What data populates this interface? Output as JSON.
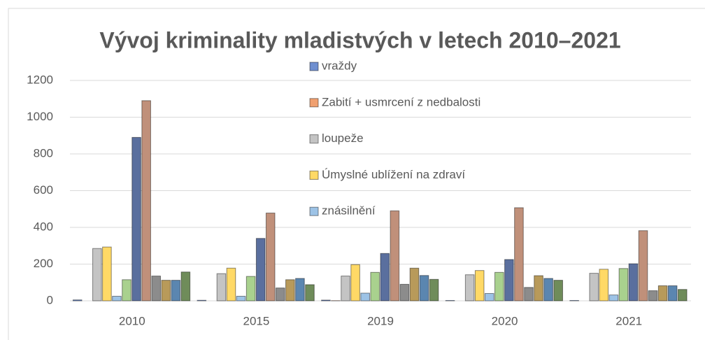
{
  "chart_data": {
    "type": "bar",
    "title": "Vývoj kriminality mladistvých v letech 2010–2021",
    "categories": [
      "2010",
      "2015",
      "2019",
      "2020",
      "2021"
    ],
    "series": [
      {
        "name": "vraždy",
        "color": "#6f8fd0",
        "values": [
          5,
          3,
          4,
          2,
          2
        ]
      },
      {
        "name": "Zabití + usmrcení z nedbalosti",
        "color": "#f0a070",
        "values": [
          0,
          0,
          1,
          0,
          0
        ]
      },
      {
        "name": "loupeže",
        "color": "#c4c4c4",
        "values": [
          285,
          148,
          135,
          142,
          150
        ]
      },
      {
        "name": "Úmyslné ublížení na zdraví",
        "color": "#ffd966",
        "values": [
          293,
          178,
          197,
          165,
          172
        ]
      },
      {
        "name": "znásilnění",
        "color": "#9dc3e6",
        "values": [
          25,
          25,
          42,
          40,
          32
        ]
      },
      {
        "color": "#a9d18e",
        "values": [
          115,
          133,
          155,
          155,
          176
        ]
      },
      {
        "color": "#5a6f9e",
        "values": [
          890,
          340,
          258,
          225,
          202
        ]
      },
      {
        "color": "#c0907a",
        "values": [
          1090,
          478,
          490,
          507,
          382
        ]
      },
      {
        "color": "#8c8c8c",
        "values": [
          135,
          70,
          90,
          73,
          55
        ]
      },
      {
        "color": "#b89a5a",
        "values": [
          112,
          115,
          178,
          137,
          82
        ]
      },
      {
        "color": "#5b86b0",
        "values": [
          112,
          122,
          138,
          122,
          82
        ]
      },
      {
        "color": "#6f8c5a",
        "values": [
          157,
          88,
          117,
          112,
          62
        ]
      }
    ],
    "ylim": [
      0,
      1200
    ],
    "yticks": [
      0,
      200,
      400,
      600,
      800,
      1000,
      1200
    ],
    "grid": true
  }
}
